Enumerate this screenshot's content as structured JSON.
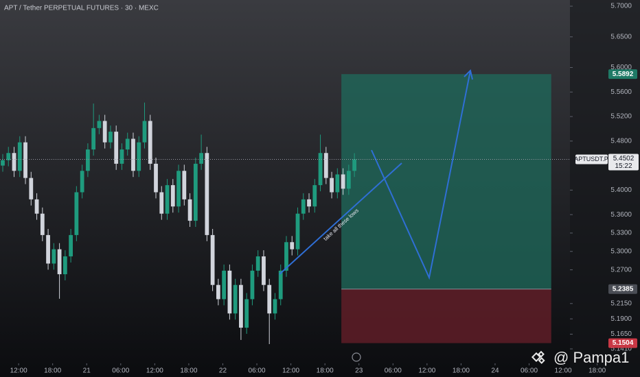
{
  "chart_data": {
    "type": "candlestick",
    "title": "APT / Tether PERPETUAL FUTURES · 30 · MEXC",
    "x": [
      0,
      1,
      2,
      3,
      4,
      5,
      6,
      7,
      8,
      9,
      10,
      11,
      12,
      13,
      14,
      15,
      16,
      17,
      18,
      19,
      20,
      21,
      22,
      23,
      24,
      25,
      26,
      27,
      28,
      29,
      30,
      31,
      32,
      33,
      34,
      35,
      36,
      37,
      38,
      39,
      40,
      41,
      42,
      43,
      44,
      45,
      46,
      47,
      48,
      49,
      50,
      51,
      52,
      53,
      54,
      55,
      56,
      57,
      58,
      59,
      60,
      61,
      62
    ],
    "open": [
      5.44,
      5.4488,
      5.4605,
      5.4314,
      5.4779,
      5.4198,
      5.3849,
      5.3616,
      5.3267,
      5.2802,
      5.3035,
      5.2628,
      5.2919,
      5.3267,
      5.3965,
      5.4314,
      5.4663,
      5.5012,
      5.5128,
      5.4779,
      5.4953,
      5.443,
      5.4663,
      5.4837,
      5.4314,
      5.4779,
      5.5128,
      5.443,
      5.3965,
      5.3616,
      5.4081,
      5.3733,
      5.4314,
      5.3849,
      5.35,
      5.443,
      5.4605,
      5.3267,
      5.2453,
      5.2221,
      5.2686,
      5.1988,
      5.2453,
      5.1756,
      5.2221,
      5.2686,
      5.2919,
      5.2453,
      5.1988,
      5.2221,
      5.2686,
      5.3151,
      5.3035,
      5.3616,
      5.3849,
      5.3733,
      5.4081,
      5.4605,
      5.4198,
      5.3965,
      5.4256,
      5.4023,
      5.4314
    ],
    "high": [
      5.4588,
      5.4705,
      5.4705,
      5.4879,
      5.4879,
      5.4298,
      5.3949,
      5.3716,
      5.3367,
      5.3135,
      5.3135,
      5.3019,
      5.3367,
      5.4065,
      5.4414,
      5.4763,
      5.5412,
      5.5228,
      5.5228,
      5.5053,
      5.5053,
      5.4763,
      5.4937,
      5.4937,
      5.4879,
      5.5428,
      5.5228,
      5.453,
      5.4065,
      5.4181,
      5.4181,
      5.4414,
      5.4414,
      5.3949,
      5.453,
      5.4905,
      5.4705,
      5.3367,
      5.2553,
      5.2786,
      5.2786,
      5.2553,
      5.2553,
      5.2321,
      5.2786,
      5.3019,
      5.3019,
      5.2553,
      5.2321,
      5.2786,
      5.3251,
      5.3251,
      5.3716,
      5.3949,
      5.3949,
      5.4181,
      5.4905,
      5.4705,
      5.4298,
      5.4356,
      5.4356,
      5.4414,
      5.4602
    ],
    "low": [
      5.43,
      5.4388,
      5.4214,
      5.4214,
      5.4098,
      5.3749,
      5.3516,
      5.3167,
      5.2702,
      5.2702,
      5.2228,
      5.2528,
      5.2819,
      5.3167,
      5.3865,
      5.4214,
      5.4563,
      5.4912,
      5.4679,
      5.4679,
      5.433,
      5.433,
      5.4563,
      5.4214,
      5.4214,
      5.4679,
      5.433,
      5.3865,
      5.3516,
      5.3516,
      5.3633,
      5.3633,
      5.3749,
      5.34,
      5.34,
      5.433,
      5.3167,
      5.2353,
      5.2121,
      5.2121,
      5.1888,
      5.1888,
      5.1556,
      5.1656,
      5.2121,
      5.2586,
      5.2353,
      5.1488,
      5.1888,
      5.2121,
      5.2586,
      5.2935,
      5.2935,
      5.3516,
      5.3633,
      5.3633,
      5.3981,
      5.4098,
      5.3865,
      5.3865,
      5.3923,
      5.3923,
      5.4214
    ],
    "close": [
      5.4488,
      5.4605,
      5.4314,
      5.4779,
      5.4198,
      5.3849,
      5.3616,
      5.3267,
      5.2802,
      5.3035,
      5.2628,
      5.2919,
      5.3267,
      5.3965,
      5.4314,
      5.4663,
      5.5012,
      5.5128,
      5.4779,
      5.4953,
      5.443,
      5.4663,
      5.4837,
      5.4314,
      5.4779,
      5.5128,
      5.443,
      5.3965,
      5.3616,
      5.4081,
      5.3733,
      5.4314,
      5.3849,
      5.35,
      5.443,
      5.4605,
      5.3267,
      5.2453,
      5.2221,
      5.2686,
      5.1988,
      5.2453,
      5.1756,
      5.2221,
      5.2686,
      5.2919,
      5.2453,
      5.1988,
      5.2221,
      5.2686,
      5.3151,
      5.3035,
      5.3616,
      5.3849,
      5.3733,
      5.4081,
      5.4605,
      5.4198,
      5.3965,
      5.4256,
      5.4023,
      5.4314,
      5.4502
    ],
    "up_color": "#1f9b7e",
    "down_color": "#d1d4dc",
    "xlim": [
      -0.484,
      112.35
    ],
    "ylim": [
      5.1354,
      5.7101
    ],
    "grid": false,
    "xticks": [
      {
        "value": 2.8,
        "label": "12:00"
      },
      {
        "value": 8.8,
        "label": "18:00"
      },
      {
        "value": 14.8,
        "label": "21"
      },
      {
        "value": 20.8,
        "label": "06:00"
      },
      {
        "value": 26.8,
        "label": "12:00"
      },
      {
        "value": 32.8,
        "label": "18:00"
      },
      {
        "value": 38.8,
        "label": "22"
      },
      {
        "value": 44.8,
        "label": "06:00"
      },
      {
        "value": 50.8,
        "label": "12:00"
      },
      {
        "value": 56.8,
        "label": "18:00"
      },
      {
        "value": 62.8,
        "label": "23"
      },
      {
        "value": 68.8,
        "label": "06:00"
      },
      {
        "value": 74.8,
        "label": "12:00"
      },
      {
        "value": 80.8,
        "label": "18:00"
      },
      {
        "value": 86.8,
        "label": "24"
      },
      {
        "value": 92.8,
        "label": "06:00"
      },
      {
        "value": 98.8,
        "label": "12:00"
      },
      {
        "value": 104.8,
        "label": "18:00"
      }
    ],
    "yticks": [
      {
        "value": 5.7,
        "label": "5.7000"
      },
      {
        "value": 5.65,
        "label": "5.6500"
      },
      {
        "value": 5.6,
        "label": "5.6000"
      },
      {
        "value": 5.56,
        "label": "5.5600"
      },
      {
        "value": 5.52,
        "label": "5.5200"
      },
      {
        "value": 5.48,
        "label": "5.4800"
      },
      {
        "value": 5.4,
        "label": "5.4000"
      },
      {
        "value": 5.36,
        "label": "5.3600"
      },
      {
        "value": 5.33,
        "label": "5.3300"
      },
      {
        "value": 5.3,
        "label": "5.3000"
      },
      {
        "value": 5.27,
        "label": "5.2700"
      },
      {
        "value": 5.215,
        "label": "5.2150"
      },
      {
        "value": 5.19,
        "label": "5.1900"
      },
      {
        "value": 5.165,
        "label": "5.1650"
      },
      {
        "value": 5.141,
        "label": "5.1410"
      }
    ],
    "position": {
      "start": 59.7,
      "end": 96.7,
      "target": 5.5892,
      "entry": 5.2385,
      "stop": 5.1504,
      "profit_color": "#1f6b5c",
      "loss_color": "#6a1f29"
    },
    "price_labels": [
      {
        "value": 5.5892,
        "color": "#1f7a66"
      },
      {
        "value": 5.2385,
        "color": "#4a4d55"
      },
      {
        "value": 5.1504,
        "color": "#c93845"
      }
    ],
    "current": {
      "symbol": "APTUSDT.P",
      "value": 5.4502,
      "countdown": "15:22"
    },
    "annotation": "take all these lows",
    "watermark": "@ Pampa1"
  }
}
